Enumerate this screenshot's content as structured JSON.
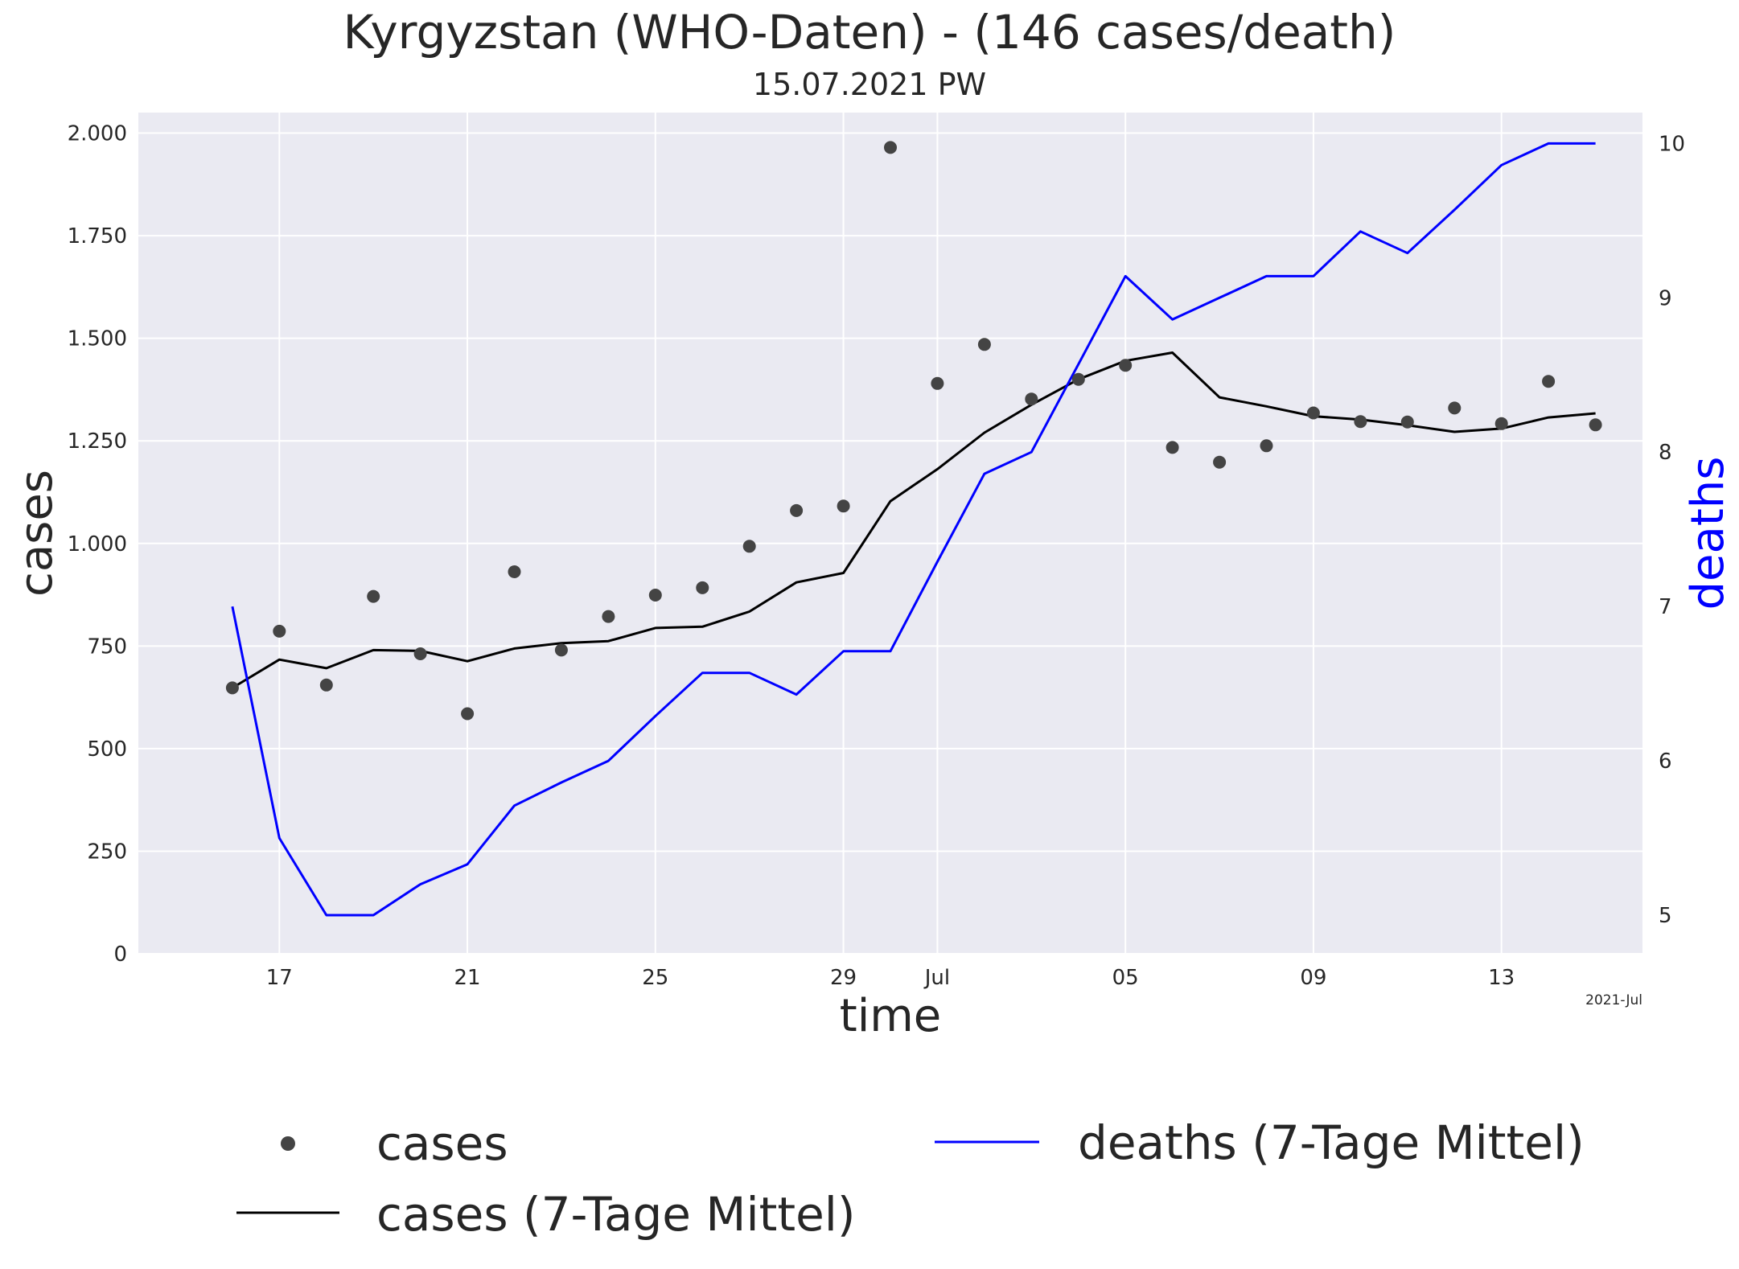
{
  "chart_data": {
    "type": "line",
    "title": "Kyrgyzstan (WHO-Daten) - (146 cases/death)",
    "subtitle": "15.07.2021 PW",
    "xlabel": "time",
    "ylabel": "cases",
    "y2label": "deaths",
    "x_offset_label": "2021-Jul",
    "x": [
      "2021-06-16",
      "2021-06-17",
      "2021-06-18",
      "2021-06-19",
      "2021-06-20",
      "2021-06-21",
      "2021-06-22",
      "2021-06-23",
      "2021-06-24",
      "2021-06-25",
      "2021-06-26",
      "2021-06-27",
      "2021-06-28",
      "2021-06-29",
      "2021-06-30",
      "2021-07-01",
      "2021-07-02",
      "2021-07-03",
      "2021-07-04",
      "2021-07-05",
      "2021-07-06",
      "2021-07-07",
      "2021-07-08",
      "2021-07-09",
      "2021-07-10",
      "2021-07-11",
      "2021-07-12",
      "2021-07-13",
      "2021-07-14",
      "2021-07-15"
    ],
    "xlim": [
      "2021-06-14",
      "2021-07-16"
    ],
    "x_ticks": [
      {
        "date": "2021-06-17",
        "label": "17"
      },
      {
        "date": "2021-06-21",
        "label": "21"
      },
      {
        "date": "2021-06-25",
        "label": "25"
      },
      {
        "date": "2021-06-29",
        "label": "29"
      },
      {
        "date": "2021-07-01",
        "label": "Jul"
      },
      {
        "date": "2021-07-05",
        "label": "05"
      },
      {
        "date": "2021-07-09",
        "label": "09"
      },
      {
        "date": "2021-07-13",
        "label": "13"
      }
    ],
    "ylim": [
      0,
      2050
    ],
    "y_ticks": [
      {
        "value": 0,
        "label": "0"
      },
      {
        "value": 250,
        "label": "250"
      },
      {
        "value": 500,
        "label": "500"
      },
      {
        "value": 750,
        "label": "750"
      },
      {
        "value": 1000,
        "label": "1.000"
      },
      {
        "value": 1250,
        "label": "1.250"
      },
      {
        "value": 1500,
        "label": "1.500"
      },
      {
        "value": 1750,
        "label": "1.750"
      },
      {
        "value": 2000,
        "label": "2.000"
      }
    ],
    "y2lim": [
      4.75,
      10.2
    ],
    "y2_ticks": [
      {
        "value": 5,
        "label": "5"
      },
      {
        "value": 6,
        "label": "6"
      },
      {
        "value": 7,
        "label": "7"
      },
      {
        "value": 8,
        "label": "8"
      },
      {
        "value": 9,
        "label": "9"
      },
      {
        "value": 10,
        "label": "10"
      }
    ],
    "grid": true,
    "legend": "bottom",
    "series": [
      {
        "name": "cases",
        "kind": "scatter",
        "axis": "left",
        "color": "#444444",
        "values": [
          648,
          786,
          655,
          871,
          731,
          585,
          931,
          740,
          822,
          874,
          892,
          993,
          1080,
          1091,
          1965,
          1390,
          1485,
          1352,
          1400,
          1434,
          1234,
          1198,
          1238,
          1318,
          1297,
          1296,
          1330,
          1292,
          1395,
          1289
        ]
      },
      {
        "name": "cases (7-Tage Mittel)",
        "kind": "line",
        "axis": "left",
        "color": "#000000",
        "values": [
          648,
          717,
          696,
          740,
          738,
          713,
          744,
          757,
          762,
          794,
          797,
          834,
          905,
          928,
          1103,
          1181,
          1270,
          1338,
          1400,
          1445,
          1465,
          1356,
          1334,
          1310,
          1302,
          1288,
          1272,
          1280,
          1307,
          1317
        ]
      },
      {
        "name": "deaths (7-Tage Mittel)",
        "kind": "line",
        "axis": "right",
        "color": "#0000ff",
        "values": [
          7.0,
          5.5,
          5.0,
          5.0,
          5.2,
          5.33,
          5.71,
          5.86,
          6.0,
          6.29,
          6.57,
          6.57,
          6.43,
          6.71,
          6.71,
          7.29,
          7.86,
          8.0,
          8.57,
          9.14,
          8.86,
          9.0,
          9.14,
          9.14,
          9.43,
          9.29,
          9.57,
          9.86,
          10.0,
          10.0
        ]
      }
    ]
  }
}
